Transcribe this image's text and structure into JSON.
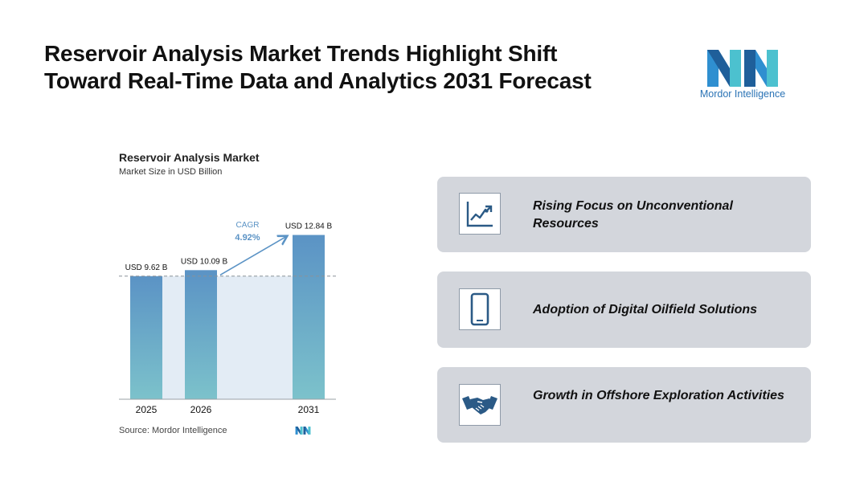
{
  "header": {
    "title_line1": "Reservoir Analysis Market Trends Highlight Shift",
    "title_line2": "Toward Real-Time Data and Analytics 2031 Forecast",
    "logo_text": "Mordor Intelligence"
  },
  "chart_data": {
    "type": "bar",
    "title": "Reservoir Analysis Market",
    "subtitle": "Market Size in USD Billion",
    "categories": [
      "2025",
      "2026",
      "2031"
    ],
    "values": [
      9.62,
      10.09,
      12.84
    ],
    "data_labels": [
      "USD 9.62 B",
      "USD 10.09 B",
      "USD 12.84 B"
    ],
    "ylim": [
      0,
      13.5
    ],
    "annotation": {
      "label": "CAGR",
      "value": "4.92%"
    },
    "source": "Source:  Mordor Intelligence",
    "colors": {
      "bar_top": "#5b93c5",
      "bar_bottom": "#7cc2cb",
      "band": "#e3ecf5",
      "arrow": "#5b93c5",
      "cagr_label": "#5b93c5"
    }
  },
  "trends": [
    {
      "icon": "line-chart-icon",
      "label": "Rising Focus on Unconventional Resources"
    },
    {
      "icon": "smartphone-icon",
      "label": "Adoption of Digital Oilfield Solutions"
    },
    {
      "icon": "handshake-icon",
      "label": "Growth in Offshore Exploration Activities"
    }
  ]
}
